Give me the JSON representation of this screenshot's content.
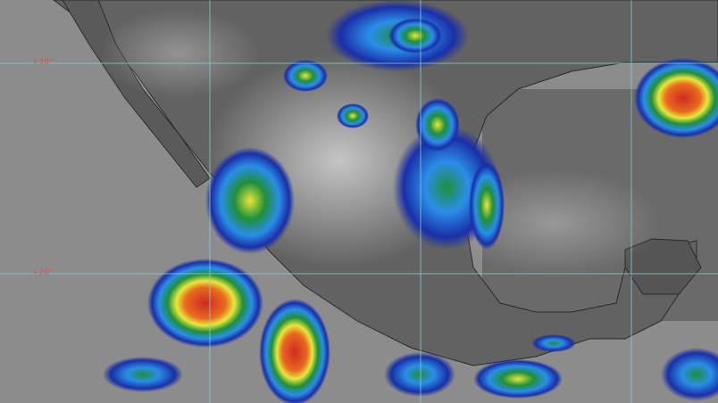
{
  "map": {
    "type": "infrared satellite image",
    "grid_labels": [
      "+30°",
      "+20°"
    ],
    "colors": {
      "ocean": "#8a8a8a",
      "land": "#5a5a5a",
      "cloud_gray": "#c8c8c8",
      "gridline": "#7fd0d0",
      "label": "#e8503c",
      "scale": [
        "#1a2fa8",
        "#2a8ee8",
        "#1f8f3a",
        "#e8e83a",
        "#e88a20",
        "#d02a20"
      ]
    }
  }
}
